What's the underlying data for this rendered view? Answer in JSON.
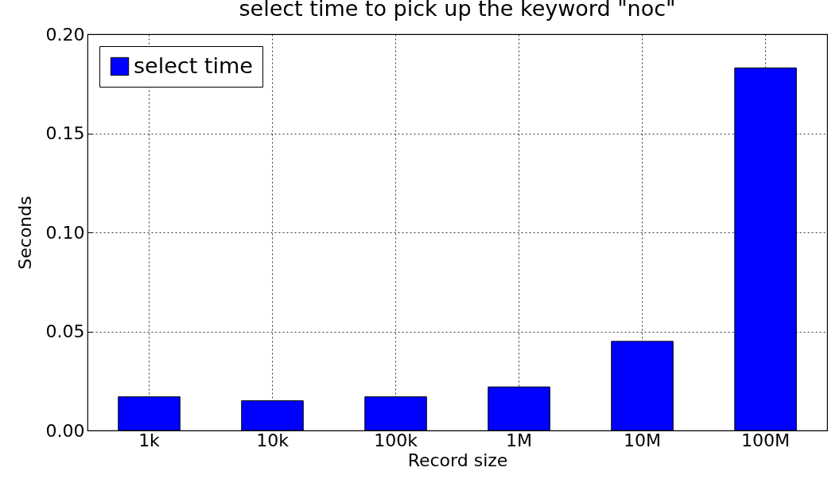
{
  "chart_data": {
    "type": "bar",
    "title": "select time to pick up the keyword \"noc\"",
    "xlabel": "Record size",
    "ylabel": "Seconds",
    "categories": [
      "1k",
      "10k",
      "100k",
      "1M",
      "10M",
      "100M"
    ],
    "series": [
      {
        "name": "select time",
        "color": "#0000ff",
        "values": [
          0.017,
          0.015,
          0.017,
          0.022,
          0.045,
          0.183
        ]
      }
    ],
    "ylim": [
      0,
      0.2
    ],
    "yticks": [
      {
        "value": 0,
        "label": "0.00"
      },
      {
        "value": 0.05,
        "label": "0.05"
      },
      {
        "value": 0.1,
        "label": "0.10"
      },
      {
        "value": 0.15,
        "label": "0.15"
      },
      {
        "value": 0.2,
        "label": "0.20"
      }
    ],
    "grid": true,
    "legend": "top left"
  }
}
